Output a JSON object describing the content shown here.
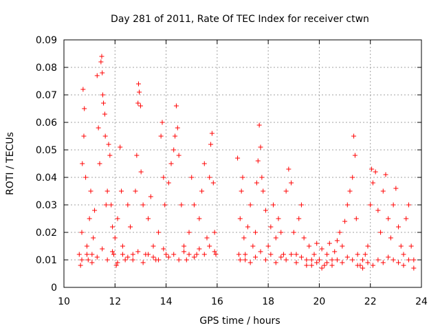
{
  "chart_data": {
    "type": "scatter",
    "title": "Day 281 of 2011, Rate Of TEC Index for receiver ctwn",
    "xlabel": "GPS time / hours",
    "ylabel": "ROTI / TECUs",
    "xlim": [
      10,
      24
    ],
    "ylim": [
      0,
      0.09
    ],
    "x_ticks": [
      10,
      12,
      14,
      16,
      18,
      20,
      22,
      24
    ],
    "y_ticks": [
      0,
      0.01,
      0.02,
      0.03,
      0.04,
      0.05,
      0.06,
      0.07,
      0.08,
      0.09
    ],
    "x_tick_labels": [
      "10",
      "12",
      "14",
      "16",
      "18",
      "20",
      "22",
      "24"
    ],
    "y_tick_labels": [
      "0",
      "0.01",
      "0.02",
      "0.03",
      "0.04",
      "0.05",
      "0.06",
      "0.07",
      "0.08",
      "0.09"
    ],
    "grid": true,
    "marker": "+",
    "color": "#ff0000",
    "points": [
      [
        10.6,
        0.012
      ],
      [
        10.65,
        0.008
      ],
      [
        10.7,
        0.02
      ],
      [
        10.72,
        0.045
      ],
      [
        10.75,
        0.072
      ],
      [
        10.78,
        0.055
      ],
      [
        10.8,
        0.065
      ],
      [
        10.85,
        0.04
      ],
      [
        10.9,
        0.015
      ],
      [
        10.95,
        0.01
      ],
      [
        11.0,
        0.025
      ],
      [
        11.05,
        0.035
      ],
      [
        11.1,
        0.012
      ],
      [
        11.15,
        0.018
      ],
      [
        11.2,
        0.028
      ],
      [
        11.3,
        0.077
      ],
      [
        11.35,
        0.058
      ],
      [
        11.4,
        0.045
      ],
      [
        11.45,
        0.082
      ],
      [
        11.48,
        0.084
      ],
      [
        11.5,
        0.078
      ],
      [
        11.52,
        0.07
      ],
      [
        11.55,
        0.067
      ],
      [
        11.6,
        0.063
      ],
      [
        11.62,
        0.055
      ],
      [
        11.65,
        0.03
      ],
      [
        11.7,
        0.035
      ],
      [
        11.75,
        0.052
      ],
      [
        11.8,
        0.048
      ],
      [
        11.85,
        0.03
      ],
      [
        11.9,
        0.022
      ],
      [
        11.95,
        0.012
      ],
      [
        12.0,
        0.018
      ],
      [
        12.05,
        0.008
      ],
      [
        12.1,
        0.025
      ],
      [
        12.2,
        0.051
      ],
      [
        12.25,
        0.035
      ],
      [
        12.3,
        0.015
      ],
      [
        12.4,
        0.01
      ],
      [
        12.5,
        0.03
      ],
      [
        12.6,
        0.022
      ],
      [
        12.7,
        0.012
      ],
      [
        12.8,
        0.035
      ],
      [
        12.85,
        0.048
      ],
      [
        12.9,
        0.067
      ],
      [
        12.92,
        0.074
      ],
      [
        12.95,
        0.071
      ],
      [
        13.0,
        0.066
      ],
      [
        13.02,
        0.042
      ],
      [
        13.1,
        0.03
      ],
      [
        13.2,
        0.012
      ],
      [
        13.3,
        0.025
      ],
      [
        13.4,
        0.033
      ],
      [
        13.5,
        0.015
      ],
      [
        13.6,
        0.01
      ],
      [
        13.7,
        0.02
      ],
      [
        13.8,
        0.055
      ],
      [
        13.85,
        0.06
      ],
      [
        13.9,
        0.04
      ],
      [
        13.95,
        0.03
      ],
      [
        14.0,
        0.012
      ],
      [
        14.1,
        0.038
      ],
      [
        14.2,
        0.045
      ],
      [
        14.3,
        0.05
      ],
      [
        14.35,
        0.055
      ],
      [
        14.4,
        0.066
      ],
      [
        14.45,
        0.058
      ],
      [
        14.5,
        0.048
      ],
      [
        14.6,
        0.03
      ],
      [
        14.7,
        0.015
      ],
      [
        14.8,
        0.01
      ],
      [
        14.9,
        0.02
      ],
      [
        15.0,
        0.04
      ],
      [
        15.1,
        0.03
      ],
      [
        15.2,
        0.012
      ],
      [
        15.3,
        0.025
      ],
      [
        15.4,
        0.035
      ],
      [
        15.5,
        0.045
      ],
      [
        15.6,
        0.018
      ],
      [
        15.7,
        0.04
      ],
      [
        15.75,
        0.052
      ],
      [
        15.8,
        0.056
      ],
      [
        15.85,
        0.038
      ],
      [
        15.9,
        0.02
      ],
      [
        15.95,
        0.012
      ],
      [
        10.7,
        0.01
      ],
      [
        10.9,
        0.012
      ],
      [
        11.1,
        0.009
      ],
      [
        11.3,
        0.011
      ],
      [
        11.5,
        0.014
      ],
      [
        11.7,
        0.01
      ],
      [
        11.9,
        0.013
      ],
      [
        12.1,
        0.009
      ],
      [
        12.3,
        0.012
      ],
      [
        12.5,
        0.011
      ],
      [
        12.7,
        0.01
      ],
      [
        12.9,
        0.013
      ],
      [
        13.1,
        0.009
      ],
      [
        13.3,
        0.012
      ],
      [
        13.5,
        0.011
      ],
      [
        13.7,
        0.01
      ],
      [
        13.9,
        0.014
      ],
      [
        14.1,
        0.011
      ],
      [
        14.3,
        0.012
      ],
      [
        14.5,
        0.01
      ],
      [
        14.7,
        0.013
      ],
      [
        14.9,
        0.012
      ],
      [
        15.1,
        0.011
      ],
      [
        15.3,
        0.014
      ],
      [
        15.5,
        0.012
      ],
      [
        15.7,
        0.015
      ],
      [
        15.9,
        0.013
      ],
      [
        16.8,
        0.047
      ],
      [
        16.85,
        0.012
      ],
      [
        16.9,
        0.025
      ],
      [
        16.95,
        0.035
      ],
      [
        17.0,
        0.04
      ],
      [
        17.05,
        0.018
      ],
      [
        17.1,
        0.01
      ],
      [
        17.2,
        0.022
      ],
      [
        17.3,
        0.03
      ],
      [
        17.4,
        0.015
      ],
      [
        17.5,
        0.02
      ],
      [
        17.55,
        0.038
      ],
      [
        17.6,
        0.046
      ],
      [
        17.65,
        0.059
      ],
      [
        17.7,
        0.051
      ],
      [
        17.75,
        0.04
      ],
      [
        17.8,
        0.035
      ],
      [
        17.9,
        0.028
      ],
      [
        18.0,
        0.015
      ],
      [
        18.1,
        0.022
      ],
      [
        18.2,
        0.03
      ],
      [
        18.3,
        0.018
      ],
      [
        18.4,
        0.025
      ],
      [
        18.5,
        0.02
      ],
      [
        18.6,
        0.012
      ],
      [
        18.7,
        0.035
      ],
      [
        18.8,
        0.043
      ],
      [
        18.9,
        0.038
      ],
      [
        19.0,
        0.02
      ],
      [
        19.1,
        0.012
      ],
      [
        19.2,
        0.025
      ],
      [
        19.3,
        0.03
      ],
      [
        19.4,
        0.018
      ],
      [
        19.5,
        0.01
      ],
      [
        19.6,
        0.015
      ],
      [
        19.7,
        0.008
      ],
      [
        19.8,
        0.012
      ],
      [
        19.9,
        0.016
      ],
      [
        20.0,
        0.01
      ],
      [
        20.1,
        0.014
      ],
      [
        20.2,
        0.008
      ],
      [
        20.3,
        0.012
      ],
      [
        20.4,
        0.016
      ],
      [
        20.5,
        0.01
      ],
      [
        20.6,
        0.013
      ],
      [
        20.7,
        0.017
      ],
      [
        20.8,
        0.02
      ],
      [
        20.9,
        0.015
      ],
      [
        21.0,
        0.024
      ],
      [
        21.1,
        0.03
      ],
      [
        21.2,
        0.035
      ],
      [
        21.3,
        0.04
      ],
      [
        21.35,
        0.055
      ],
      [
        21.4,
        0.048
      ],
      [
        21.45,
        0.025
      ],
      [
        21.5,
        0.012
      ],
      [
        21.6,
        0.008
      ],
      [
        21.7,
        0.01
      ],
      [
        21.8,
        0.012
      ],
      [
        21.9,
        0.015
      ],
      [
        22.0,
        0.03
      ],
      [
        22.05,
        0.043
      ],
      [
        22.1,
        0.038
      ],
      [
        22.2,
        0.042
      ],
      [
        22.3,
        0.028
      ],
      [
        22.4,
        0.02
      ],
      [
        22.5,
        0.035
      ],
      [
        22.6,
        0.041
      ],
      [
        22.7,
        0.025
      ],
      [
        22.8,
        0.018
      ],
      [
        22.9,
        0.03
      ],
      [
        23.0,
        0.036
      ],
      [
        23.1,
        0.022
      ],
      [
        23.2,
        0.015
      ],
      [
        23.3,
        0.012
      ],
      [
        23.4,
        0.025
      ],
      [
        23.5,
        0.03
      ],
      [
        23.6,
        0.015
      ],
      [
        23.7,
        0.01
      ],
      [
        16.9,
        0.01
      ],
      [
        17.1,
        0.012
      ],
      [
        17.3,
        0.009
      ],
      [
        17.5,
        0.011
      ],
      [
        17.7,
        0.013
      ],
      [
        17.9,
        0.01
      ],
      [
        18.1,
        0.012
      ],
      [
        18.3,
        0.009
      ],
      [
        18.5,
        0.011
      ],
      [
        18.7,
        0.01
      ],
      [
        18.9,
        0.012
      ],
      [
        19.1,
        0.009
      ],
      [
        19.3,
        0.011
      ],
      [
        19.5,
        0.008
      ],
      [
        19.7,
        0.01
      ],
      [
        19.9,
        0.009
      ],
      [
        20.1,
        0.007
      ],
      [
        20.3,
        0.009
      ],
      [
        20.5,
        0.008
      ],
      [
        20.7,
        0.01
      ],
      [
        20.9,
        0.009
      ],
      [
        21.1,
        0.011
      ],
      [
        21.3,
        0.01
      ],
      [
        21.5,
        0.008
      ],
      [
        21.7,
        0.007
      ],
      [
        21.9,
        0.009
      ],
      [
        22.1,
        0.008
      ],
      [
        22.3,
        0.01
      ],
      [
        22.5,
        0.009
      ],
      [
        22.7,
        0.011
      ],
      [
        22.9,
        0.01
      ],
      [
        23.1,
        0.009
      ],
      [
        23.3,
        0.008
      ],
      [
        23.5,
        0.01
      ],
      [
        23.7,
        0.007
      ]
    ]
  }
}
